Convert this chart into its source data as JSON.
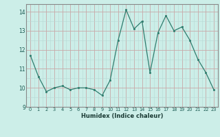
{
  "x": [
    0,
    1,
    2,
    3,
    4,
    5,
    6,
    7,
    8,
    9,
    10,
    11,
    12,
    13,
    14,
    15,
    16,
    17,
    18,
    19,
    20,
    21,
    22,
    23
  ],
  "y": [
    11.7,
    10.6,
    9.8,
    10.0,
    10.1,
    9.9,
    10.0,
    10.0,
    9.9,
    9.6,
    10.4,
    12.5,
    14.1,
    13.1,
    13.5,
    10.8,
    12.9,
    13.8,
    13.0,
    13.2,
    12.5,
    11.5,
    10.8,
    9.9
  ],
  "xlabel": "Humidex (Indice chaleur)",
  "ylim": [
    9,
    14.4
  ],
  "xlim": [
    -0.5,
    23.5
  ],
  "yticks": [
    9,
    10,
    11,
    12,
    13,
    14
  ],
  "xticks": [
    0,
    1,
    2,
    3,
    4,
    5,
    6,
    7,
    8,
    9,
    10,
    11,
    12,
    13,
    14,
    15,
    16,
    17,
    18,
    19,
    20,
    21,
    22,
    23
  ],
  "line_color": "#2e7d6e",
  "marker_color": "#2e7d6e",
  "bg_color": "#cceee8",
  "grid_major_color": "#c8a8a8",
  "grid_minor_color": "#b8d8d4",
  "spine_color": "#888888"
}
